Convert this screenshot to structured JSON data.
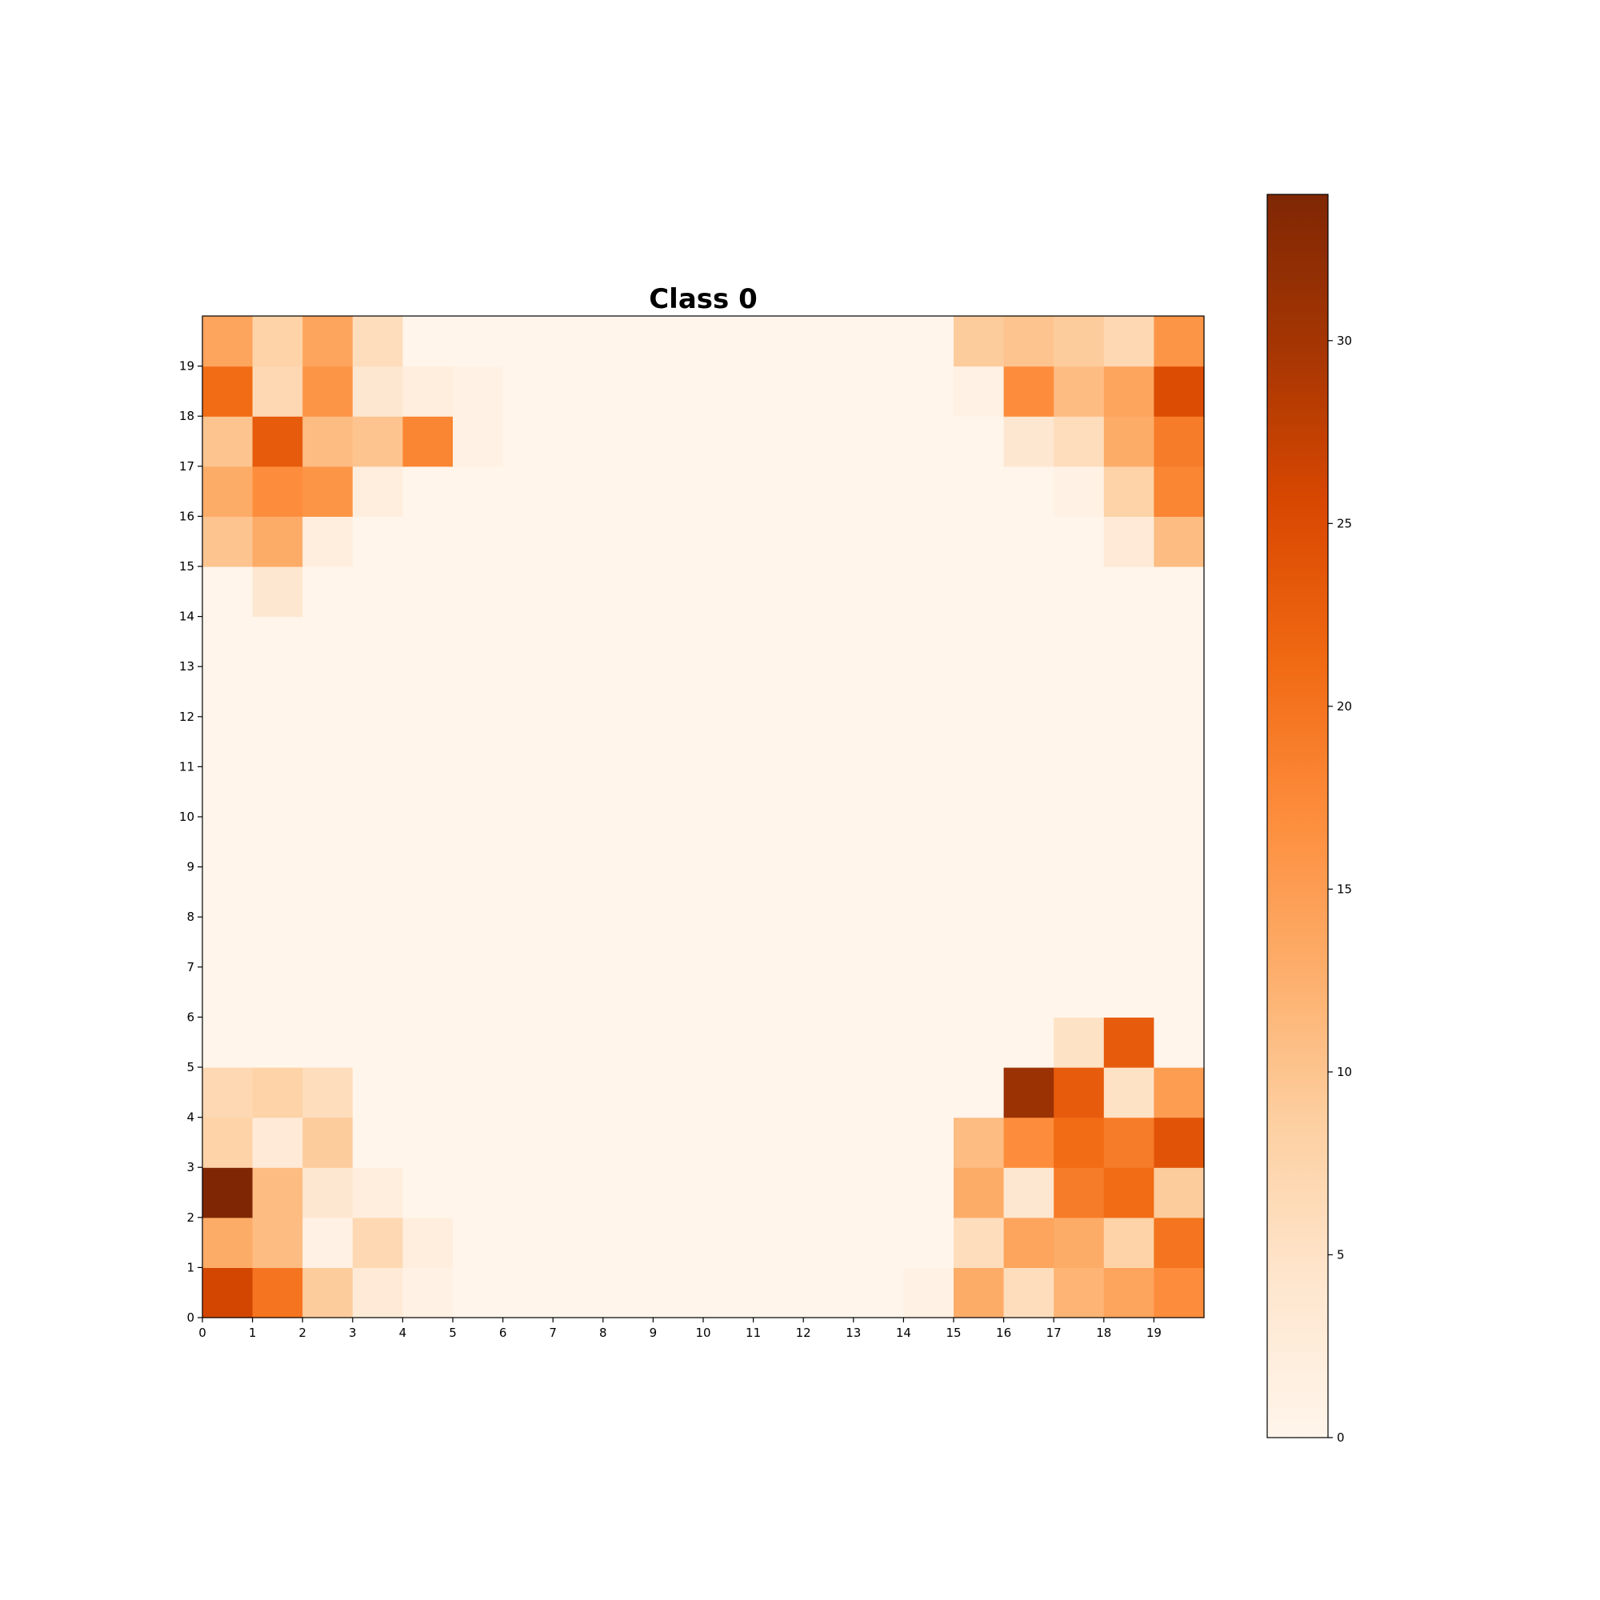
{
  "chart_data": {
    "type": "heatmap",
    "title": "Class 0",
    "xlabel": "",
    "ylabel": "",
    "colormap": "Oranges",
    "grid": false,
    "x_ticks": [
      "0",
      "1",
      "2",
      "3",
      "4",
      "5",
      "6",
      "7",
      "8",
      "9",
      "10",
      "11",
      "12",
      "13",
      "14",
      "15",
      "16",
      "17",
      "18",
      "19"
    ],
    "y_ticks": [
      "0",
      "1",
      "2",
      "3",
      "4",
      "5",
      "6",
      "7",
      "8",
      "9",
      "10",
      "11",
      "12",
      "13",
      "14",
      "15",
      "16",
      "17",
      "18",
      "19"
    ],
    "xlim": [
      0,
      20
    ],
    "ylim": [
      0,
      20
    ],
    "colorbar": {
      "range": [
        0,
        34
      ],
      "ticks": [
        0,
        5,
        10,
        15,
        20,
        25,
        30
      ],
      "tick_labels": [
        "0",
        "5",
        "10",
        "15",
        "20",
        "25",
        "30"
      ]
    },
    "rows_from_bottom": [
      [
        26,
        20,
        9,
        3,
        1,
        0,
        0,
        0,
        0,
        0,
        0,
        0,
        0,
        0,
        1,
        13,
        6,
        12,
        14,
        17
      ],
      [
        13,
        11,
        1,
        7,
        2,
        0,
        0,
        0,
        0,
        0,
        0,
        0,
        0,
        0,
        0,
        6,
        14,
        13,
        8,
        20
      ],
      [
        34,
        11,
        4,
        2,
        0,
        0,
        0,
        0,
        0,
        0,
        0,
        0,
        0,
        0,
        0,
        13,
        4,
        19,
        21,
        9
      ],
      [
        8,
        3,
        9,
        0,
        0,
        0,
        0,
        0,
        0,
        0,
        0,
        0,
        0,
        0,
        0,
        11,
        17,
        21,
        19,
        24
      ],
      [
        7,
        8,
        6,
        0,
        0,
        0,
        0,
        0,
        0,
        0,
        0,
        0,
        0,
        0,
        0,
        0,
        31,
        23,
        5,
        15
      ],
      [
        0,
        0,
        0,
        0,
        0,
        0,
        0,
        0,
        0,
        0,
        0,
        0,
        0,
        0,
        0,
        0,
        0,
        5,
        23,
        0
      ],
      [
        0,
        0,
        0,
        0,
        0,
        0,
        0,
        0,
        0,
        0,
        0,
        0,
        0,
        0,
        0,
        0,
        0,
        0,
        0,
        0
      ],
      [
        0,
        0,
        0,
        0,
        0,
        0,
        0,
        0,
        0,
        0,
        0,
        0,
        0,
        0,
        0,
        0,
        0,
        0,
        0,
        0
      ],
      [
        0,
        0,
        0,
        0,
        0,
        0,
        0,
        0,
        0,
        0,
        0,
        0,
        0,
        0,
        0,
        0,
        0,
        0,
        0,
        0
      ],
      [
        0,
        0,
        0,
        0,
        0,
        0,
        0,
        0,
        0,
        0,
        0,
        0,
        0,
        0,
        0,
        0,
        0,
        0,
        0,
        0
      ],
      [
        0,
        0,
        0,
        0,
        0,
        0,
        0,
        0,
        0,
        0,
        0,
        0,
        0,
        0,
        0,
        0,
        0,
        0,
        0,
        0
      ],
      [
        0,
        0,
        0,
        0,
        0,
        0,
        0,
        0,
        0,
        0,
        0,
        0,
        0,
        0,
        0,
        0,
        0,
        0,
        0,
        0
      ],
      [
        0,
        0,
        0,
        0,
        0,
        0,
        0,
        0,
        0,
        0,
        0,
        0,
        0,
        0,
        0,
        0,
        0,
        0,
        0,
        0
      ],
      [
        0,
        0,
        0,
        0,
        0,
        0,
        0,
        0,
        0,
        0,
        0,
        0,
        0,
        0,
        0,
        0,
        0,
        0,
        0,
        0
      ],
      [
        0,
        4,
        0,
        0,
        0,
        0,
        0,
        0,
        0,
        0,
        0,
        0,
        0,
        0,
        0,
        0,
        0,
        0,
        0,
        0
      ],
      [
        10,
        13,
        2,
        0,
        0,
        0,
        0,
        0,
        0,
        0,
        0,
        0,
        0,
        0,
        0,
        0,
        0,
        0,
        3,
        11
      ],
      [
        13,
        17,
        16,
        2,
        0,
        0,
        0,
        0,
        0,
        0,
        0,
        0,
        0,
        0,
        0,
        0,
        0,
        1,
        8,
        18
      ],
      [
        10,
        23,
        11,
        10,
        18,
        1,
        0,
        0,
        0,
        0,
        0,
        0,
        0,
        0,
        0,
        0,
        4,
        6,
        13,
        19
      ],
      [
        21,
        7,
        16,
        4,
        2,
        1,
        0,
        0,
        0,
        0,
        0,
        0,
        0,
        0,
        0,
        1,
        17,
        11,
        14,
        25
      ],
      [
        14,
        8,
        14,
        6,
        0,
        0,
        0,
        0,
        0,
        0,
        0,
        0,
        0,
        0,
        0,
        9,
        10,
        9,
        7,
        16
      ]
    ]
  }
}
